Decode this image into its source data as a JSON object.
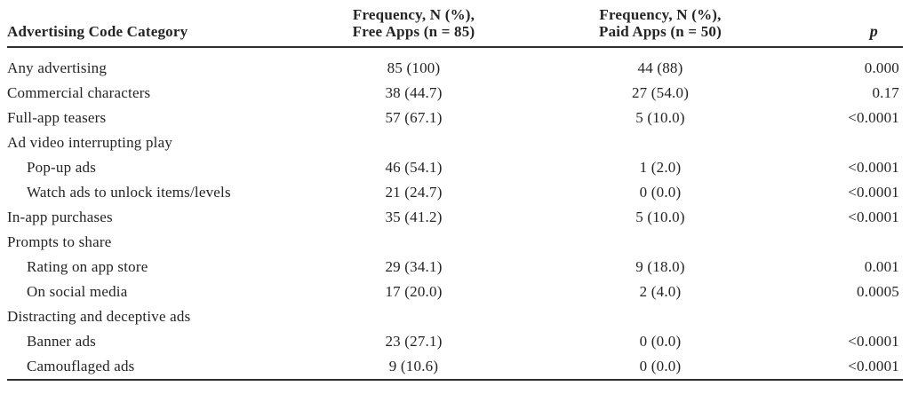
{
  "page": {
    "background_color": "#ffffff",
    "text_color": "#242424",
    "rule_color": "#2f2f2f"
  },
  "table": {
    "header": {
      "category": "Advertising Code Category",
      "free_line1": "Frequency, N (%),",
      "free_line2": "Free Apps (n = 85)",
      "paid_line1": "Frequency, N (%),",
      "paid_line2": "Paid Apps (n = 50)",
      "p": "p"
    },
    "rows": [
      {
        "category": "Any advertising",
        "indent": false,
        "free": "85 (100)",
        "paid": "44 (88)",
        "p": "0.000"
      },
      {
        "category": "Commercial characters",
        "indent": false,
        "free": "38 (44.7)",
        "paid": "27 (54.0)",
        "p": "0.17"
      },
      {
        "category": "Full-app teasers",
        "indent": false,
        "free": "57 (67.1)",
        "paid": "5 (10.0)",
        "p": "<0.0001"
      },
      {
        "category": "Ad video interrupting play",
        "indent": false,
        "free": "",
        "paid": "",
        "p": ""
      },
      {
        "category": "Pop-up ads",
        "indent": true,
        "free": "46 (54.1)",
        "paid": "1 (2.0)",
        "p": "<0.0001"
      },
      {
        "category": "Watch ads to unlock items/levels",
        "indent": true,
        "free": "21 (24.7)",
        "paid": "0 (0.0)",
        "p": "<0.0001"
      },
      {
        "category": "In-app purchases",
        "indent": false,
        "free": "35 (41.2)",
        "paid": "5 (10.0)",
        "p": "<0.0001"
      },
      {
        "category": "Prompts to share",
        "indent": false,
        "free": "",
        "paid": "",
        "p": ""
      },
      {
        "category": "Rating on app store",
        "indent": true,
        "free": "29 (34.1)",
        "paid": "9 (18.0)",
        "p": "0.001"
      },
      {
        "category": "On social media",
        "indent": true,
        "free": "17 (20.0)",
        "paid": "2 (4.0)",
        "p": "0.0005"
      },
      {
        "category": "Distracting and deceptive ads",
        "indent": false,
        "free": "",
        "paid": "",
        "p": ""
      },
      {
        "category": "Banner ads",
        "indent": true,
        "free": "23 (27.1)",
        "paid": "0 (0.0)",
        "p": "<0.0001"
      },
      {
        "category": "Camouflaged ads",
        "indent": true,
        "free": "9 (10.6)",
        "paid": "0 (0.0)",
        "p": "<0.0001"
      }
    ]
  }
}
